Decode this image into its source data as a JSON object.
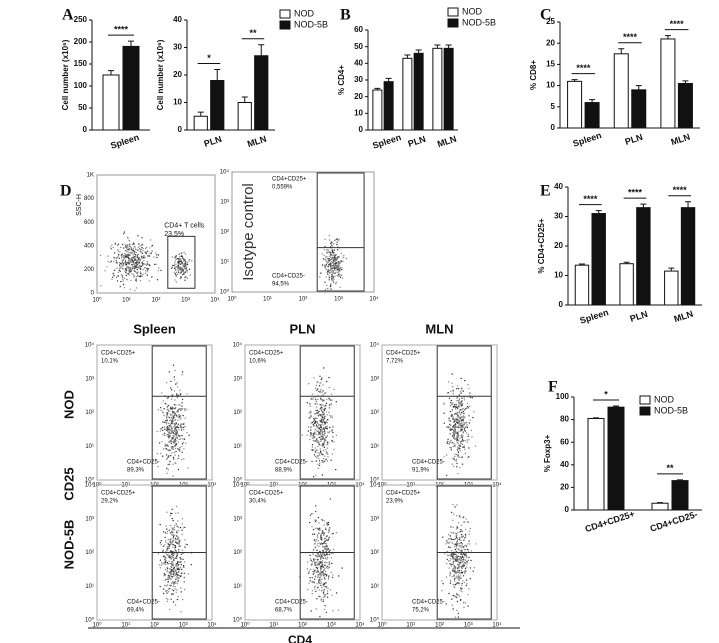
{
  "chart_data": [
    {
      "type": "bar",
      "panel": "A",
      "ylabel": "Cell number (x10⁶)",
      "categories": [
        "Spleen"
      ],
      "series": [
        {
          "color": "#ffffff",
          "values": [
            125
          ],
          "errors": [
            10
          ]
        },
        {
          "color": "#111111",
          "values": [
            190
          ],
          "errors": [
            12
          ]
        }
      ],
      "ylim": [
        0,
        250
      ],
      "yticks": [
        0,
        50,
        100,
        150,
        200,
        250
      ],
      "significance": [
        "****"
      ],
      "legend": false
    },
    {
      "type": "bar",
      "ylabel": "Cell number (x10⁶)",
      "categories": [
        "PLN",
        "MLN"
      ],
      "series": [
        {
          "name": "NOD",
          "color": "#ffffff",
          "values": [
            5,
            10
          ],
          "errors": [
            1.5,
            2
          ]
        },
        {
          "name": "NOD-5B",
          "color": "#111111",
          "values": [
            18,
            27
          ],
          "errors": [
            4,
            4
          ]
        }
      ],
      "ylim": [
        0,
        40
      ],
      "yticks": [
        0,
        10,
        20,
        30,
        40
      ],
      "significance": [
        "*",
        "**"
      ],
      "legend": true
    },
    {
      "type": "bar",
      "panel": "B",
      "ylabel": "% CD4+",
      "categories": [
        "Spleen",
        "PLN",
        "MLN"
      ],
      "series": [
        {
          "name": "NOD",
          "color": "#ffffff",
          "values": [
            24,
            43,
            49
          ],
          "errors": [
            1,
            2,
            2
          ]
        },
        {
          "name": "NOD-5B",
          "color": "#111111",
          "values": [
            29,
            46,
            49
          ],
          "errors": [
            2,
            2,
            2
          ]
        }
      ],
      "ylim": [
        0,
        60
      ],
      "yticks": [
        0,
        10,
        20,
        30,
        40,
        50,
        60
      ],
      "legend": true
    },
    {
      "type": "bar",
      "panel": "C",
      "ylabel": "% CD8+",
      "categories": [
        "Spleen",
        "PLN",
        "MLN"
      ],
      "series": [
        {
          "color": "#ffffff",
          "values": [
            11,
            17.5,
            21
          ],
          "errors": [
            0.4,
            1.2,
            0.8
          ]
        },
        {
          "color": "#111111",
          "values": [
            6,
            9,
            10.5
          ],
          "errors": [
            0.7,
            1,
            0.6
          ]
        }
      ],
      "ylim": [
        0,
        25
      ],
      "yticks": [
        0,
        5,
        10,
        15,
        20,
        25
      ],
      "significance": [
        "****",
        "****",
        "****"
      ],
      "legend": false
    },
    {
      "type": "bar",
      "panel": "E",
      "ylabel": "% CD4+CD25+",
      "categories": [
        "Spleen",
        "PLN",
        "MLN"
      ],
      "series": [
        {
          "color": "#ffffff",
          "values": [
            13.5,
            14,
            11.5
          ],
          "errors": [
            0.4,
            0.5,
            1
          ]
        },
        {
          "color": "#111111",
          "values": [
            31,
            33,
            33
          ],
          "errors": [
            1,
            1.2,
            2
          ]
        }
      ],
      "ylim": [
        0,
        40
      ],
      "yticks": [
        0,
        10,
        20,
        30,
        40
      ],
      "significance": [
        "****",
        "****",
        "****"
      ],
      "legend": false
    },
    {
      "type": "bar",
      "panel": "F",
      "ylabel": "% Foxp3+",
      "categories": [
        "CD4+CD25+",
        "CD4+CD25-"
      ],
      "series": [
        {
          "name": "NOD",
          "color": "#ffffff",
          "values": [
            81,
            6
          ],
          "errors": [
            0.5,
            0.5
          ]
        },
        {
          "name": "NOD-5B",
          "color": "#111111",
          "values": [
            91,
            26
          ],
          "errors": [
            1,
            0.7
          ]
        }
      ],
      "ylim": [
        0,
        100
      ],
      "yticks": [
        0,
        20,
        40,
        60,
        80,
        100
      ],
      "significance": [
        "*",
        "**"
      ],
      "legend": true
    }
  ],
  "flow": {
    "panel": "D",
    "log_ticks": [
      "10⁰",
      "10¹",
      "10²",
      "10³",
      "10⁴"
    ],
    "gating": {
      "y_label": "SSC-H",
      "yticks": [
        "0",
        "200",
        "400",
        "600",
        "800",
        "1K"
      ],
      "gate_label": "CD4+ T cells",
      "gate_value": "23,5%"
    },
    "isotype": {
      "title": "Isotype control",
      "upper": "CD4+CD25+",
      "upper_value": "0,559%",
      "lower": "CD4+CD25-",
      "lower_value": "94,5%"
    },
    "columns": [
      "Spleen",
      "PLN",
      "MLN"
    ],
    "rows": [
      "NOD",
      "NOD-5B"
    ],
    "y_axis": "CD25",
    "x_axis": "CD4",
    "quadrants": [
      [
        {
          "upper": "CD4+CD25+",
          "upper_value": "10,1%",
          "lower": "CD4+CD25-",
          "lower_value": "89,3%"
        },
        {
          "upper": "CD4+CD25+",
          "upper_value": "10,6%",
          "lower": "CD4+CD25-",
          "lower_value": "88,9%"
        },
        {
          "upper": "CD4+CD25+",
          "upper_value": "7,72%",
          "lower": "CD4+CD25-",
          "lower_value": "91,9%"
        }
      ],
      [
        {
          "upper": "CD4+CD25+",
          "upper_value": "29,2%",
          "lower": "CD4+CD25-",
          "lower_value": "69,4%"
        },
        {
          "upper": "CD4+CD25+",
          "upper_value": "30,4%",
          "lower": "CD4+CD25-",
          "lower_value": "68,7%"
        },
        {
          "upper": "CD4+CD25+",
          "upper_value": "23,9%",
          "lower": "CD4+CD25-",
          "lower_value": "75,2%"
        }
      ]
    ]
  }
}
